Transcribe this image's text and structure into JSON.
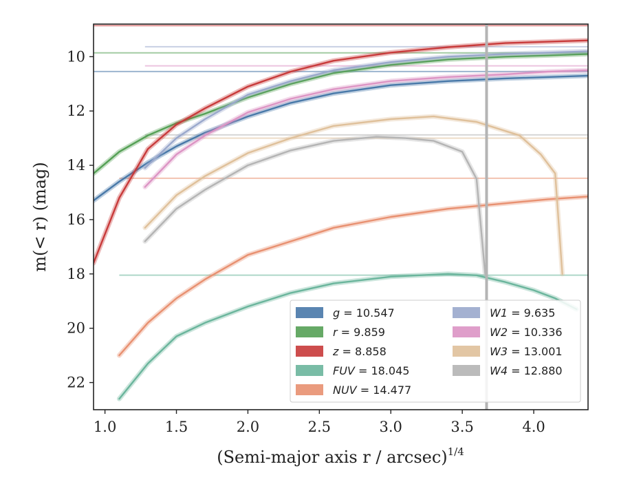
{
  "chart_data": {
    "type": "line",
    "xlabel": "(Semi-major axis r / arcsec)",
    "xlabel_sup": "1/4",
    "ylabel": "m(< r) (mag)",
    "xlim": [
      0.92,
      4.38
    ],
    "ylim": [
      23.0,
      8.8
    ],
    "y_inverted": true,
    "grid": false,
    "legend_position": "lower-right",
    "xticks": [
      1.0,
      1.5,
      2.0,
      2.5,
      3.0,
      3.5,
      4.0
    ],
    "xtick_labels": [
      "1.0",
      "1.5",
      "2.0",
      "2.5",
      "3.0",
      "3.5",
      "4.0"
    ],
    "yticks": [
      10,
      12,
      14,
      16,
      18,
      20,
      22
    ],
    "ytick_labels": [
      "10",
      "12",
      "14",
      "16",
      "18",
      "20",
      "22"
    ],
    "vline_x": 3.67,
    "series": [
      {
        "name": "g",
        "label_value": "10.547",
        "color": "#4878a8",
        "asym": 10.547,
        "x": [
          0.92,
          1.1,
          1.3,
          1.5,
          1.7,
          2.0,
          2.3,
          2.6,
          3.0,
          3.4,
          3.8,
          4.1,
          4.38
        ],
        "y": [
          15.3,
          14.6,
          13.9,
          13.3,
          12.8,
          12.2,
          11.7,
          11.35,
          11.05,
          10.9,
          10.8,
          10.75,
          10.7
        ]
      },
      {
        "name": "r",
        "label_value": "9.859",
        "color": "#55a055",
        "asym": 9.859,
        "x": [
          0.92,
          1.1,
          1.3,
          1.5,
          1.7,
          2.0,
          2.3,
          2.6,
          3.0,
          3.4,
          3.8,
          4.1,
          4.38
        ],
        "y": [
          14.3,
          13.5,
          12.9,
          12.45,
          12.1,
          11.5,
          11.0,
          10.6,
          10.3,
          10.1,
          10.0,
          9.95,
          9.9
        ]
      },
      {
        "name": "z",
        "label_value": "8.858",
        "color": "#c83a3a",
        "asym": 8.858,
        "x": [
          0.92,
          1.1,
          1.3,
          1.5,
          1.7,
          2.0,
          2.3,
          2.6,
          3.0,
          3.4,
          3.8,
          4.1,
          4.38
        ],
        "y": [
          17.6,
          15.2,
          13.4,
          12.5,
          11.9,
          11.1,
          10.55,
          10.15,
          9.85,
          9.65,
          9.5,
          9.45,
          9.4
        ]
      },
      {
        "name": "FUV",
        "label_value": "18.045",
        "color": "#6ab59c",
        "asym": 18.045,
        "x": [
          1.1,
          1.3,
          1.5,
          1.7,
          2.0,
          2.3,
          2.6,
          3.0,
          3.4,
          3.6,
          3.8,
          4.0,
          4.15,
          4.3
        ],
        "y": [
          22.6,
          21.3,
          20.3,
          19.8,
          19.2,
          18.7,
          18.35,
          18.1,
          18.0,
          18.05,
          18.3,
          18.6,
          18.9,
          19.3
        ]
      },
      {
        "name": "NUV",
        "label_value": "14.477",
        "color": "#e89070",
        "asym": 14.477,
        "x": [
          1.1,
          1.3,
          1.5,
          1.7,
          2.0,
          2.3,
          2.6,
          3.0,
          3.4,
          3.8,
          4.1,
          4.38
        ],
        "y": [
          21.0,
          19.8,
          18.9,
          18.2,
          17.3,
          16.8,
          16.3,
          15.9,
          15.6,
          15.4,
          15.25,
          15.15
        ]
      },
      {
        "name": "W1",
        "label_value": "9.635",
        "color": "#9aa8cc",
        "asym": 9.635,
        "x": [
          1.28,
          1.5,
          1.7,
          2.0,
          2.3,
          2.6,
          3.0,
          3.4,
          3.8,
          4.1,
          4.38
        ],
        "y": [
          14.1,
          13.0,
          12.3,
          11.4,
          10.9,
          10.5,
          10.2,
          10.0,
          9.9,
          9.85,
          9.8
        ]
      },
      {
        "name": "W2",
        "label_value": "10.336",
        "color": "#dc94c4",
        "asym": 10.336,
        "x": [
          1.28,
          1.5,
          1.7,
          2.0,
          2.3,
          2.6,
          3.0,
          3.4,
          3.8,
          4.1,
          4.38
        ],
        "y": [
          14.8,
          13.6,
          12.9,
          12.05,
          11.55,
          11.2,
          10.9,
          10.75,
          10.65,
          10.55,
          10.5
        ]
      },
      {
        "name": "W3",
        "label_value": "13.001",
        "color": "#dfc09a",
        "asym": 13.001,
        "x": [
          1.28,
          1.5,
          1.7,
          2.0,
          2.3,
          2.6,
          3.0,
          3.3,
          3.6,
          3.9,
          4.05,
          4.15,
          4.2
        ],
        "y": [
          16.3,
          15.1,
          14.4,
          13.55,
          13.0,
          12.55,
          12.3,
          12.2,
          12.4,
          12.9,
          13.6,
          14.3,
          18.0
        ]
      },
      {
        "name": "W4",
        "label_value": "12.880",
        "color": "#b4b4b4",
        "asym": 12.88,
        "x": [
          1.28,
          1.5,
          1.7,
          2.0,
          2.3,
          2.6,
          2.9,
          3.1,
          3.3,
          3.5,
          3.6,
          3.66
        ],
        "y": [
          16.8,
          15.6,
          14.9,
          14.0,
          13.45,
          13.1,
          12.95,
          13.0,
          13.1,
          13.5,
          14.5,
          18.0
        ]
      }
    ],
    "legend_prefix_note": ""
  }
}
